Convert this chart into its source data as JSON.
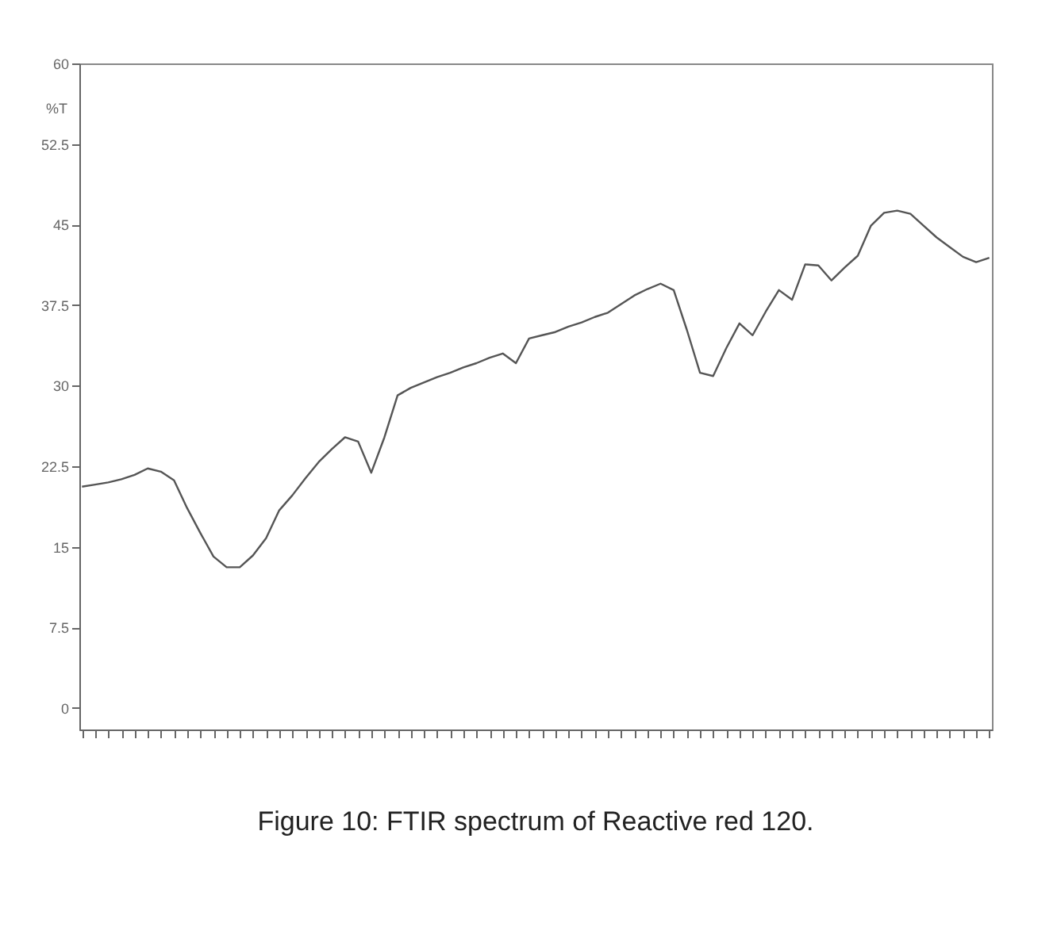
{
  "chart_data": {
    "type": "line",
    "title": "Figure 10: FTIR spectrum of Reactive red 120.",
    "ylabel": "%T",
    "categories": [
      null,
      null,
      null,
      null,
      null,
      null,
      null,
      null,
      null,
      null,
      null,
      null,
      null,
      null,
      null,
      null,
      null,
      null,
      null,
      null,
      null,
      null,
      null,
      null,
      null,
      null,
      null,
      null,
      null,
      null,
      null,
      null,
      null,
      null,
      null,
      null,
      null,
      null,
      null,
      null,
      null,
      null,
      null,
      null,
      null,
      null,
      null,
      null,
      null,
      null,
      null,
      null,
      null,
      null,
      null,
      null,
      null,
      null,
      null,
      null,
      null,
      null,
      null,
      null,
      null,
      null,
      null,
      null,
      null,
      null
    ],
    "series": [
      {
        "color": "#555555",
        "values": [
          20.6,
          20.8,
          21.0,
          21.3,
          21.7,
          22.3,
          22.0,
          21.2,
          18.6,
          16.3,
          14.1,
          13.1,
          13.1,
          14.2,
          15.8,
          18.4,
          19.8,
          21.4,
          22.9,
          24.1,
          25.2,
          24.8,
          21.9,
          25.2,
          29.1,
          29.8,
          30.3,
          30.8,
          31.2,
          31.7,
          32.1,
          32.6,
          33.0,
          32.1,
          34.4,
          34.7,
          35.0,
          35.5,
          35.9,
          36.4,
          36.8,
          37.6,
          38.4,
          39.0,
          39.5,
          38.9,
          35.2,
          31.2,
          30.9,
          33.5,
          35.8,
          34.7,
          36.9,
          38.9,
          38.0,
          41.3,
          41.2,
          39.8,
          41.0,
          42.1,
          44.9,
          46.1,
          46.3,
          46.0,
          44.9,
          43.8,
          42.9,
          42.0,
          41.5,
          41.9
        ]
      }
    ],
    "ylim": [
      -2,
      60
    ],
    "yticks": [
      0,
      7.5,
      15,
      22.5,
      30,
      37.5,
      45,
      52.5,
      60
    ],
    "grid": false,
    "tick_labels": "y"
  }
}
